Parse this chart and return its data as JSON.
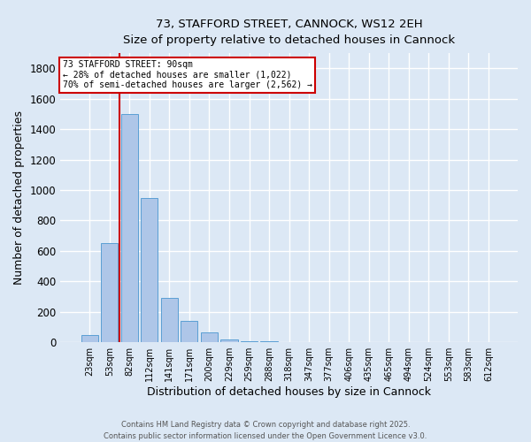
{
  "title_line1": "73, STAFFORD STREET, CANNOCK, WS12 2EH",
  "title_line2": "Size of property relative to detached houses in Cannock",
  "xlabel": "Distribution of detached houses by size in Cannock",
  "ylabel": "Number of detached properties",
  "bar_labels": [
    "23sqm",
    "53sqm",
    "82sqm",
    "112sqm",
    "141sqm",
    "171sqm",
    "200sqm",
    "229sqm",
    "259sqm",
    "288sqm",
    "318sqm",
    "347sqm",
    "377sqm",
    "406sqm",
    "435sqm",
    "465sqm",
    "494sqm",
    "524sqm",
    "553sqm",
    "583sqm",
    "612sqm"
  ],
  "bar_values": [
    50,
    650,
    1500,
    950,
    290,
    140,
    65,
    20,
    8,
    5,
    3,
    2,
    1,
    1,
    0,
    0,
    0,
    0,
    0,
    0,
    0
  ],
  "bar_color": "#aec6e8",
  "bar_edge_color": "#5a9fd4",
  "property_bar_index": 2,
  "annotation_line1": "73 STAFFORD STREET: 90sqm",
  "annotation_line2": "← 28% of detached houses are smaller (1,022)",
  "annotation_line3": "70% of semi-detached houses are larger (2,562) →",
  "annotation_box_color": "#ffffff",
  "annotation_box_edge": "#cc0000",
  "red_line_color": "#cc0000",
  "plot_bg_color": "#dce8f5",
  "grid_color": "#ffffff",
  "ylim": [
    0,
    1900
  ],
  "yticks": [
    0,
    200,
    400,
    600,
    800,
    1000,
    1200,
    1400,
    1600,
    1800
  ],
  "footer_line1": "Contains HM Land Registry data © Crown copyright and database right 2025.",
  "footer_line2": "Contains public sector information licensed under the Open Government Licence v3.0."
}
